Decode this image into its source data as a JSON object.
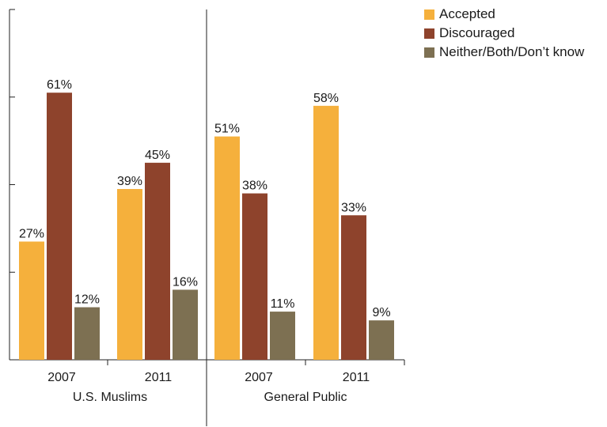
{
  "chart_data": {
    "type": "bar",
    "groups": [
      {
        "label": "U.S. Muslims",
        "years": [
          "2007",
          "2011"
        ]
      },
      {
        "label": "General Public",
        "years": [
          "2007",
          "2011"
        ]
      }
    ],
    "series": [
      {
        "name": "Accepted",
        "color": "#f5b03c",
        "values": [
          27,
          39,
          51,
          58
        ],
        "labels": [
          "27%",
          "39%",
          "51%",
          "58%"
        ]
      },
      {
        "name": "Discouraged",
        "color": "#8e432c",
        "values": [
          61,
          45,
          38,
          33
        ],
        "labels": [
          "61%",
          "45%",
          "38%",
          "33%"
        ]
      },
      {
        "name": "Neither/Both/Don’t know",
        "color": "#7d7052",
        "values": [
          12,
          16,
          11,
          9
        ],
        "labels": [
          "12%",
          "16%",
          "11%",
          "9%"
        ]
      }
    ],
    "ylim": [
      0,
      80
    ],
    "grid": false,
    "legend_position": "top-right"
  }
}
